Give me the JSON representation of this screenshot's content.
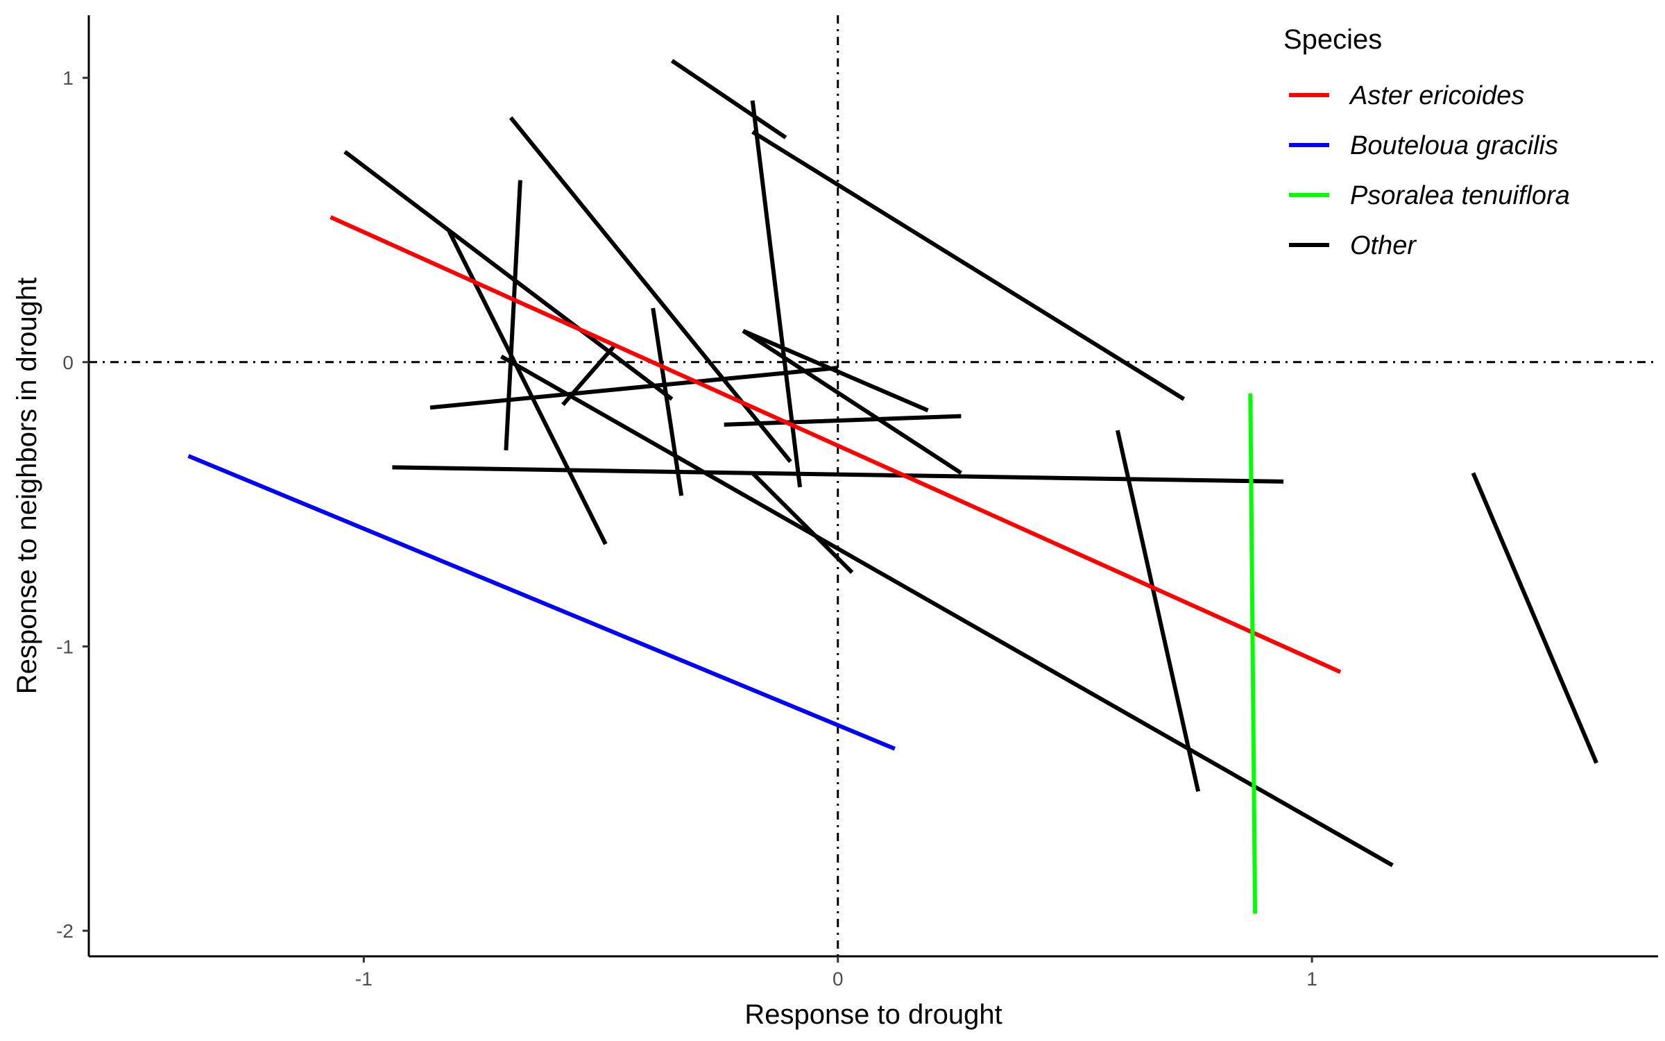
{
  "chart_data": {
    "type": "line",
    "title": "",
    "xlabel": "Response to drought",
    "ylabel": "Response to neighbors in drought",
    "xlim": [
      -1.58,
      1.73
    ],
    "ylim": [
      -2.09,
      1.22
    ],
    "x_ticks": [
      -1,
      0,
      1
    ],
    "x_tick_labels": [
      "-1",
      "0",
      "1"
    ],
    "y_ticks": [
      -2,
      -1,
      0,
      1
    ],
    "y_tick_labels": [
      "-2",
      "-1",
      "0",
      "1"
    ],
    "grid": false,
    "reference_lines": {
      "x": 0,
      "y": 0,
      "style": "dot-dash"
    },
    "legend": {
      "title": "Species",
      "position": "top-right",
      "entries": [
        {
          "label": "Aster ericoides",
          "color": "#ff0000"
        },
        {
          "label": "Bouteloua gracilis",
          "color": "#0000ff"
        },
        {
          "label": "Psoralea tenuiflora",
          "color": "#00ff00"
        },
        {
          "label": "Other",
          "color": "#000000"
        }
      ]
    },
    "series": [
      {
        "name": "Other",
        "color": "#000000",
        "x": [
          -0.35,
          -0.11
        ],
        "y": [
          1.06,
          0.79
        ]
      },
      {
        "name": "Other",
        "color": "#000000",
        "x": [
          -0.18,
          -0.08
        ],
        "y": [
          0.92,
          -0.44
        ]
      },
      {
        "name": "Other",
        "color": "#000000",
        "x": [
          -0.18,
          0.73
        ],
        "y": [
          0.81,
          -0.13
        ]
      },
      {
        "name": "Other",
        "color": "#000000",
        "x": [
          -0.69,
          -0.1
        ],
        "y": [
          0.86,
          -0.35
        ]
      },
      {
        "name": "Other",
        "color": "#000000",
        "x": [
          -1.04,
          -0.35
        ],
        "y": [
          0.74,
          -0.13
        ]
      },
      {
        "name": "Other",
        "color": "#000000",
        "x": [
          -0.82,
          -0.49
        ],
        "y": [
          0.46,
          -0.64
        ]
      },
      {
        "name": "Other",
        "color": "#000000",
        "x": [
          -0.67,
          -0.7
        ],
        "y": [
          0.64,
          -0.31
        ]
      },
      {
        "name": "Other",
        "color": "#000000",
        "x": [
          -0.39,
          -0.33
        ],
        "y": [
          0.19,
          -0.47
        ]
      },
      {
        "name": "Other",
        "color": "#000000",
        "x": [
          -0.58,
          -0.47
        ],
        "y": [
          -0.15,
          0.06
        ]
      },
      {
        "name": "Other",
        "color": "#000000",
        "x": [
          -0.86,
          0.0
        ],
        "y": [
          -0.16,
          -0.02
        ]
      },
      {
        "name": "Other",
        "color": "#000000",
        "x": [
          -0.2,
          0.19
        ],
        "y": [
          0.11,
          -0.17
        ]
      },
      {
        "name": "Other",
        "color": "#000000",
        "x": [
          -0.2,
          0.26
        ],
        "y": [
          0.11,
          -0.39
        ]
      },
      {
        "name": "Other",
        "color": "#000000",
        "x": [
          -0.24,
          0.26
        ],
        "y": [
          -0.22,
          -0.19
        ]
      },
      {
        "name": "Other",
        "color": "#000000",
        "x": [
          -0.94,
          0.94
        ],
        "y": [
          -0.37,
          -0.42
        ]
      },
      {
        "name": "Other",
        "color": "#000000",
        "x": [
          -0.18,
          0.03
        ],
        "y": [
          -0.39,
          -0.74
        ]
      },
      {
        "name": "Other",
        "color": "#000000",
        "x": [
          -0.71,
          1.17
        ],
        "y": [
          0.02,
          -1.77
        ]
      },
      {
        "name": "Other",
        "color": "#000000",
        "x": [
          0.59,
          0.76
        ],
        "y": [
          -0.24,
          -1.51
        ]
      },
      {
        "name": "Other",
        "color": "#000000",
        "x": [
          1.34,
          1.6
        ],
        "y": [
          -0.39,
          -1.41
        ]
      },
      {
        "name": "Aster ericoides",
        "color": "#ff0000",
        "x": [
          -1.07,
          1.06
        ],
        "y": [
          0.51,
          -1.09
        ]
      },
      {
        "name": "Bouteloua gracilis",
        "color": "#0000ff",
        "x": [
          -1.37,
          0.12
        ],
        "y": [
          -0.33,
          -1.36
        ]
      },
      {
        "name": "Psoralea tenuiflora",
        "color": "#00ff00",
        "x": [
          0.87,
          0.88
        ],
        "y": [
          -0.11,
          -1.94
        ]
      }
    ]
  }
}
